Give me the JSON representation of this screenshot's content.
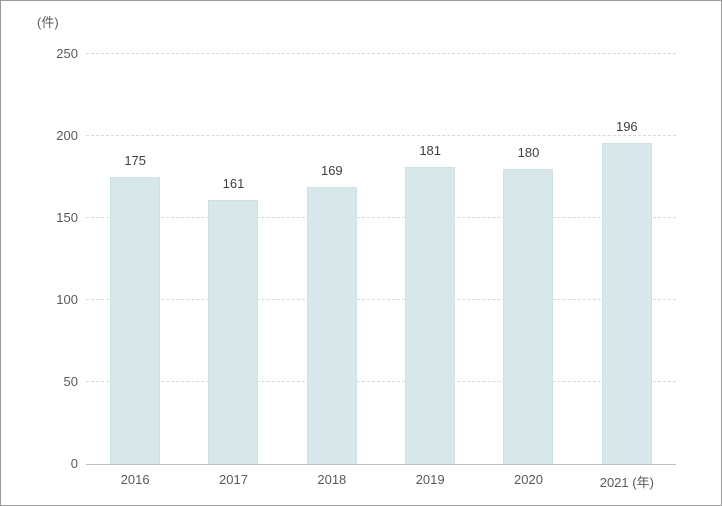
{
  "chart_data": {
    "type": "bar",
    "title": "",
    "unit_label": "(件)",
    "categories": [
      "2016",
      "2017",
      "2018",
      "2019",
      "2020",
      "2021"
    ],
    "values": [
      175,
      161,
      169,
      181,
      180,
      196
    ],
    "x_axis_suffix": "(年)",
    "xlabel": "",
    "ylabel": "(件)",
    "ylim": [
      0,
      250
    ],
    "yticks": [
      0,
      50,
      100,
      150,
      200,
      250
    ],
    "grid": "horizontal-dashed",
    "legend": "none",
    "colors": {
      "bar_fill": "#d8e8ea",
      "bar_border": "#c6dcdf",
      "gridline": "#d9d9d9",
      "axis_line": "#bfbfbf",
      "tick_text": "#595959",
      "value_text": "#404040",
      "frame_border": "#9a9a9a",
      "background": "#ffffff"
    }
  }
}
